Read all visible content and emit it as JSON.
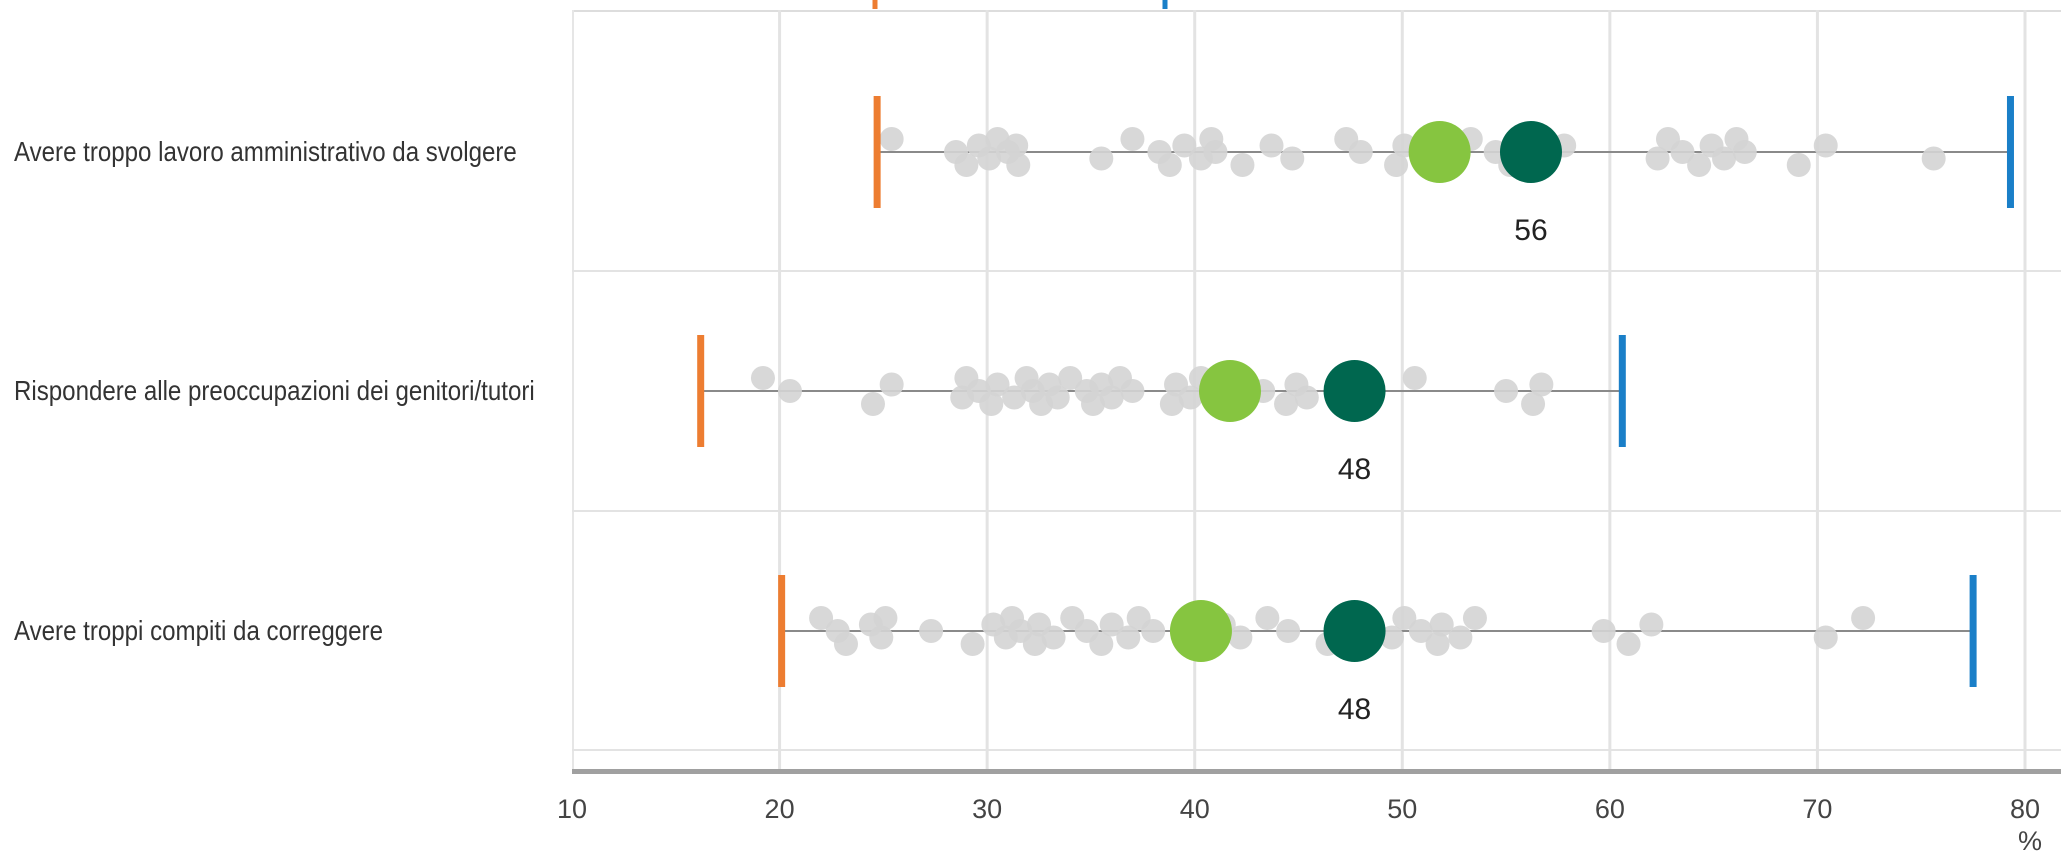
{
  "chart_data": {
    "type": "scatter",
    "xlabel": "%",
    "xlim": [
      10,
      80
    ],
    "xticks": [
      10,
      20,
      30,
      40,
      50,
      60,
      70,
      80
    ],
    "grid": "vertical",
    "colors": {
      "min": "#ed7d31",
      "max": "#1a7fc8",
      "country": "#86c540",
      "average": "#00674f",
      "others": "#d4d4d4",
      "range_line": "#8a8a8a"
    },
    "rows": [
      {
        "label": "Avere troppo lavoro amministrativo da svolgere",
        "min": 24.7,
        "max": 79.3,
        "country": 51.8,
        "average": 56.2,
        "average_label": "56",
        "others": [
          25.4,
          28.5,
          29.0,
          29.6,
          30.1,
          30.5,
          31.0,
          31.5,
          31.4,
          35.5,
          37.0,
          38.3,
          38.8,
          39.5,
          40.3,
          40.8,
          41.0,
          42.3,
          43.7,
          44.7,
          47.3,
          48.0,
          49.7,
          50.1,
          52.5,
          53.3,
          54.5,
          55.2,
          57.8,
          62.3,
          62.8,
          63.5,
          64.3,
          64.9,
          65.5,
          66.1,
          66.5,
          69.1,
          70.4,
          75.6
        ]
      },
      {
        "label": "Rispondere alle preoccupazioni dei genitori/tutori",
        "min": 16.2,
        "max": 60.6,
        "country": 41.7,
        "average": 47.7,
        "average_label": "48",
        "others": [
          19.2,
          20.5,
          24.5,
          25.4,
          28.8,
          29.0,
          29.6,
          30.2,
          30.5,
          31.3,
          31.9,
          32.2,
          32.6,
          33.0,
          33.4,
          34.0,
          34.8,
          35.1,
          35.5,
          36.0,
          36.4,
          37.0,
          38.9,
          39.1,
          39.8,
          40.3,
          43.3,
          44.4,
          44.9,
          45.4,
          50.6,
          55.0,
          56.3,
          56.7
        ]
      },
      {
        "label": "Avere troppi compiti da correggere",
        "min": 20.1,
        "max": 77.5,
        "country": 40.3,
        "average": 47.7,
        "average_label": "48",
        "others": [
          22.0,
          22.8,
          23.2,
          24.4,
          24.9,
          25.1,
          27.3,
          29.3,
          30.3,
          30.9,
          31.2,
          31.6,
          32.3,
          32.5,
          33.2,
          34.1,
          34.8,
          35.5,
          36.0,
          36.8,
          37.3,
          38.0,
          40.9,
          41.4,
          42.2,
          43.5,
          44.5,
          46.4,
          48.2,
          49.5,
          50.1,
          50.9,
          51.7,
          51.9,
          52.8,
          53.5,
          59.7,
          60.9,
          62.0,
          70.4,
          72.2
        ]
      }
    ]
  }
}
